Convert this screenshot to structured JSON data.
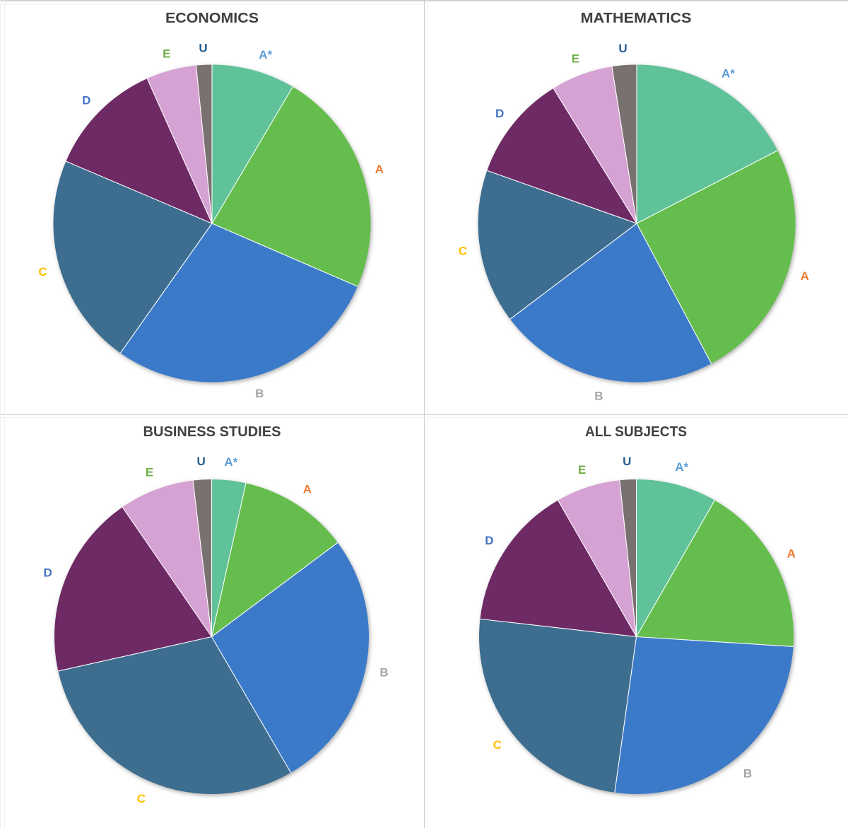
{
  "page": {
    "background": "#FFFFFF",
    "grid_line_color": "#CDCDCD",
    "title_color": "#404040"
  },
  "palette": {
    "slice": {
      "A*": "#5EC299",
      "A": "#65BD4E",
      "B": "#3B7AC9",
      "C": "#3E6D8F",
      "D": "#6E2965",
      "E": "#D6A1D3",
      "U": "#797170"
    },
    "label": {
      "A*": "#5B9BD5",
      "A": "#ED7D31",
      "B": "#A5A5A5",
      "C": "#FFC000",
      "D": "#4472C4",
      "E": "#70AD47",
      "U": "#255E91"
    }
  },
  "chart_data": [
    {
      "type": "pie",
      "title": "ECONOMICS",
      "categories": [
        "A*",
        "A",
        "B",
        "C",
        "D",
        "E",
        "U"
      ],
      "values": [
        8.5,
        23.0,
        28.3,
        21.6,
        11.9,
        5.1,
        1.6
      ],
      "start_angle_deg": 0,
      "direction": "clockwise",
      "center": [
        300,
        316
      ],
      "radius": 224.5,
      "label_radius": 249,
      "label_offsets": {
        "A*": [
          10,
          1
        ]
      },
      "legend": "none"
    },
    {
      "type": "pie",
      "title": "MATHEMATICS",
      "categories": [
        "A*",
        "A",
        "B",
        "C",
        "D",
        "E",
        "U"
      ],
      "values": [
        17.4,
        24.8,
        22.5,
        15.7,
        10.8,
        6.3,
        2.5
      ],
      "start_angle_deg": 0,
      "direction": "clockwise",
      "center": [
        301,
        316
      ],
      "radius": 224.5,
      "label_radius": 249,
      "legend": "none"
    },
    {
      "type": "pie",
      "title": "BUSINESS STUDIES",
      "categories": [
        "A*",
        "A",
        "B",
        "C",
        "D",
        "E",
        "U"
      ],
      "values": [
        3.5,
        11.3,
        26.8,
        29.9,
        18.9,
        7.7,
        1.9
      ],
      "start_angle_deg": 0,
      "direction": "clockwise",
      "center": [
        299.5,
        314.5
      ],
      "radius": 222.5,
      "label_radius": 249,
      "legend": "none"
    },
    {
      "type": "pie",
      "title": "ALL SUBJECTS",
      "categories": [
        "A*",
        "A",
        "B",
        "C",
        "D",
        "E",
        "U"
      ],
      "values": [
        8.3,
        17.7,
        26.2,
        24.6,
        14.9,
        6.6,
        1.7
      ],
      "start_angle_deg": 0,
      "direction": "clockwise",
      "center": [
        300.5,
        314.5
      ],
      "radius": 222.5,
      "label_radius": 249,
      "legend": "none"
    }
  ]
}
